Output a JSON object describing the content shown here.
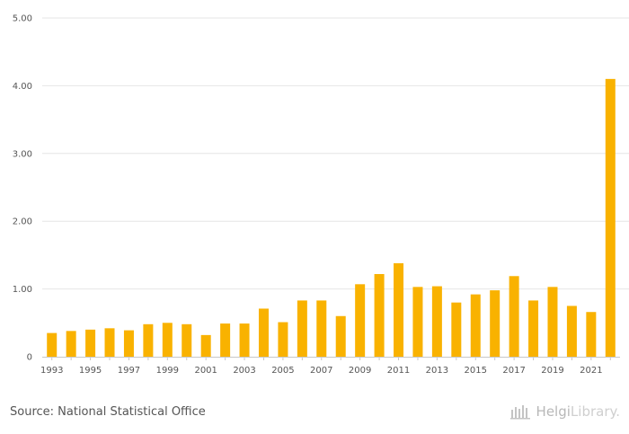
{
  "chart_data": {
    "type": "bar",
    "categories": [
      "1993",
      "1994",
      "1995",
      "1996",
      "1997",
      "1998",
      "1999",
      "2000",
      "2001",
      "2002",
      "2003",
      "2004",
      "2005",
      "2006",
      "2007",
      "2008",
      "2009",
      "2010",
      "2011",
      "2012",
      "2013",
      "2014",
      "2015",
      "2016",
      "2017",
      "2018",
      "2019",
      "2020",
      "2021",
      "2022"
    ],
    "values": [
      0.35,
      0.38,
      0.4,
      0.42,
      0.39,
      0.48,
      0.5,
      0.48,
      0.32,
      0.49,
      0.49,
      0.71,
      0.51,
      0.83,
      0.83,
      0.6,
      1.07,
      1.22,
      1.38,
      1.03,
      1.04,
      0.8,
      0.92,
      0.98,
      1.19,
      0.83,
      1.03,
      0.75,
      0.66,
      4.1
    ],
    "x_tick_labels": [
      "1993",
      "1995",
      "1997",
      "1999",
      "2001",
      "2003",
      "2005",
      "2007",
      "2009",
      "2011",
      "2013",
      "2015",
      "2017",
      "2019",
      "2021"
    ],
    "y_tick_labels": [
      "0",
      "1.00",
      "2.00",
      "3.00",
      "4.00",
      "5.00"
    ],
    "ylim": [
      0,
      5
    ],
    "title": "",
    "xlabel": "",
    "ylabel": "",
    "grid": true,
    "bar_color": "#f9b200"
  },
  "footer": {
    "source": "Source: National Statistical Office",
    "brand_part1": "Helgi",
    "brand_part2": "Library."
  }
}
